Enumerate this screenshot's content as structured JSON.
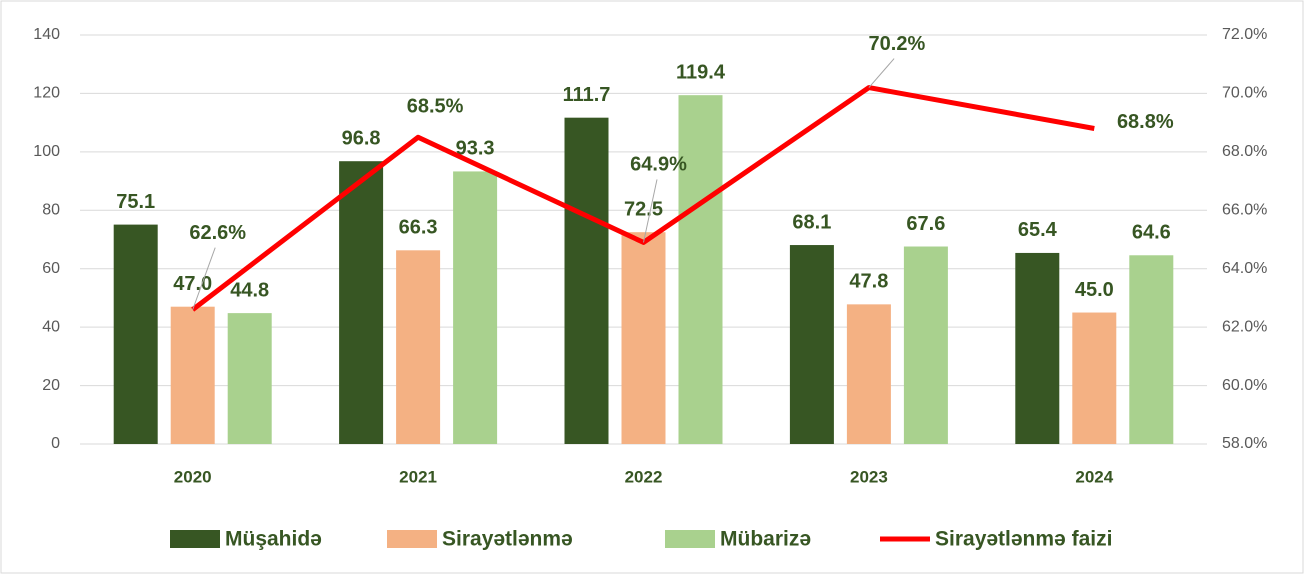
{
  "chart_data": {
    "type": "bar",
    "categories": [
      "2020",
      "2021",
      "2022",
      "2023",
      "2024"
    ],
    "series": [
      {
        "name": "Müşahidə",
        "color": "#375623",
        "values": [
          75.1,
          96.8,
          111.7,
          68.1,
          65.4
        ],
        "value_labels": [
          "75.1",
          "96.8",
          "111.7",
          "68.1",
          "65.4"
        ]
      },
      {
        "name": "Sirayətlənmə",
        "color": "#f4b183",
        "values": [
          47.0,
          66.3,
          72.5,
          47.8,
          45.0
        ],
        "value_labels": [
          "47.0",
          "66.3",
          "72.5",
          "47.8",
          "45.0"
        ]
      },
      {
        "name": "Mübarizə",
        "color": "#a9d18e",
        "values": [
          44.8,
          93.3,
          119.4,
          67.6,
          64.6
        ],
        "value_labels": [
          "44.8",
          "93.3",
          "119.4",
          "67.6",
          "64.6"
        ]
      },
      {
        "name": "Sirayətlənmə faizi",
        "color": "#ff0000",
        "type": "line",
        "axis": "y2",
        "values": [
          62.6,
          68.5,
          64.9,
          70.2,
          68.8
        ],
        "value_labels": [
          "62.6%",
          "68.5%",
          "64.9%",
          "70.2%",
          "68.8%"
        ]
      }
    ],
    "ylim": [
      0,
      140
    ],
    "yticks": [
      0,
      20,
      40,
      60,
      80,
      100,
      120,
      140
    ],
    "y2lim": [
      58,
      72
    ],
    "y2ticks": [
      {
        "value": 58,
        "label": "58.0%"
      },
      {
        "value": 60,
        "label": "60.0%"
      },
      {
        "value": 62,
        "label": "62.0%"
      },
      {
        "value": 64,
        "label": "64.0%"
      },
      {
        "value": 66,
        "label": "66.0%"
      },
      {
        "value": 68,
        "label": "68.0%"
      },
      {
        "value": 70,
        "label": "70.0%"
      },
      {
        "value": 72,
        "label": "72.0%"
      }
    ],
    "grid": true,
    "legend": "bottom"
  }
}
